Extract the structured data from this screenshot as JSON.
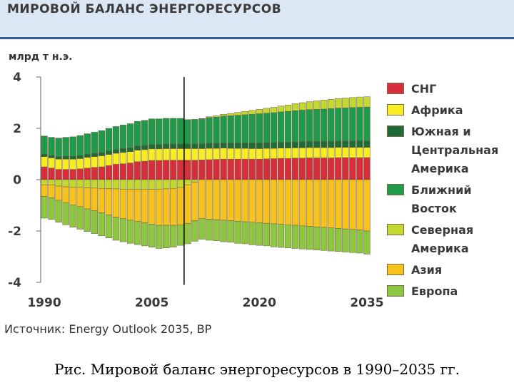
{
  "header": {
    "title": "МИРОВОЙ БАЛАНС ЭНЕРГОРЕСУРСОВ"
  },
  "source": "Источник: Energy Outlook 2035, BP",
  "caption": "Рис. Мировой баланс энергоресурсов в 1990–2035 гг.",
  "colors": {
    "background": "#ffffff",
    "header_band": "#dbe7f3",
    "header_rule": "#2f5fa0"
  },
  "chart_data": {
    "type": "bar",
    "stacked": "diverging",
    "title": "МИРОВОЙ БАЛАНС ЭНЕРГОРЕСУРСОВ",
    "ylabel": "млрд т н.э.",
    "ylim": [
      -4,
      4
    ],
    "y_ticks": [
      4,
      2,
      0,
      -2,
      -4
    ],
    "x_ticks": [
      "1990",
      "2005",
      "2020",
      "2035"
    ],
    "x": [
      1990,
      1991,
      1992,
      1993,
      1994,
      1995,
      1996,
      1997,
      1998,
      1999,
      2000,
      2001,
      2002,
      2003,
      2004,
      2005,
      2006,
      2007,
      2008,
      2009,
      2010,
      2011,
      2012,
      2013,
      2014,
      2015,
      2016,
      2017,
      2018,
      2019,
      2020,
      2021,
      2022,
      2023,
      2024,
      2025,
      2026,
      2027,
      2028,
      2029,
      2030,
      2031,
      2032,
      2033,
      2034,
      2035
    ],
    "divider_x": 2010,
    "legend_position": "right",
    "series": [
      {
        "name": "СНГ",
        "color": "#d62f3b",
        "values": [
          0.5,
          0.45,
          0.4,
          0.4,
          0.4,
          0.42,
          0.45,
          0.48,
          0.5,
          0.55,
          0.6,
          0.62,
          0.65,
          0.7,
          0.72,
          0.75,
          0.75,
          0.76,
          0.76,
          0.76,
          0.76,
          0.76,
          0.77,
          0.78,
          0.79,
          0.8,
          0.8,
          0.8,
          0.8,
          0.8,
          0.8,
          0.81,
          0.82,
          0.83,
          0.83,
          0.84,
          0.84,
          0.85,
          0.85,
          0.85,
          0.85,
          0.86,
          0.86,
          0.86,
          0.86,
          0.86
        ]
      },
      {
        "name": "Африка",
        "color": "#f8ed22",
        "values": [
          0.4,
          0.4,
          0.4,
          0.4,
          0.4,
          0.4,
          0.42,
          0.42,
          0.43,
          0.43,
          0.43,
          0.44,
          0.44,
          0.45,
          0.45,
          0.45,
          0.45,
          0.45,
          0.45,
          0.45,
          0.45,
          0.45,
          0.44,
          0.44,
          0.43,
          0.43,
          0.42,
          0.42,
          0.42,
          0.41,
          0.41,
          0.41,
          0.4,
          0.4,
          0.4,
          0.4,
          0.4,
          0.4,
          0.4,
          0.4,
          0.4,
          0.4,
          0.4,
          0.4,
          0.4,
          0.4
        ]
      },
      {
        "name": "Южная и\nЦентральная\nАмерика",
        "color": "#1f6b35",
        "values": [
          0.1,
          0.1,
          0.1,
          0.11,
          0.11,
          0.12,
          0.12,
          0.13,
          0.13,
          0.14,
          0.14,
          0.15,
          0.15,
          0.16,
          0.16,
          0.17,
          0.17,
          0.18,
          0.18,
          0.18,
          0.18,
          0.19,
          0.19,
          0.2,
          0.2,
          0.2,
          0.21,
          0.21,
          0.21,
          0.22,
          0.22,
          0.22,
          0.22,
          0.23,
          0.23,
          0.23,
          0.24,
          0.24,
          0.24,
          0.24,
          0.25,
          0.25,
          0.25,
          0.25,
          0.25,
          0.25
        ]
      },
      {
        "name": "Ближний\nВосток",
        "color": "#1f9a48",
        "values": [
          0.7,
          0.7,
          0.72,
          0.74,
          0.76,
          0.78,
          0.8,
          0.82,
          0.85,
          0.88,
          0.9,
          0.92,
          0.94,
          0.96,
          0.98,
          1.0,
          1.0,
          1.0,
          1.0,
          1.0,
          0.95,
          0.95,
          0.98,
          1.0,
          1.02,
          1.05,
          1.06,
          1.08,
          1.1,
          1.12,
          1.14,
          1.15,
          1.17,
          1.18,
          1.2,
          1.22,
          1.23,
          1.24,
          1.25,
          1.26,
          1.27,
          1.28,
          1.29,
          1.3,
          1.31,
          1.32
        ]
      },
      {
        "name": "Северная\nАмерика",
        "color": "#c3d92f",
        "values": [
          -0.2,
          -0.2,
          -0.25,
          -0.28,
          -0.3,
          -0.3,
          -0.32,
          -0.33,
          -0.34,
          -0.35,
          -0.36,
          -0.37,
          -0.38,
          -0.38,
          -0.38,
          -0.38,
          -0.38,
          -0.36,
          -0.34,
          -0.3,
          -0.2,
          -0.1,
          0.0,
          0.03,
          0.05,
          0.07,
          0.09,
          0.11,
          0.13,
          0.15,
          0.17,
          0.19,
          0.21,
          0.23,
          0.25,
          0.27,
          0.29,
          0.31,
          0.33,
          0.35,
          0.36,
          0.37,
          0.38,
          0.39,
          0.4,
          0.4
        ]
      },
      {
        "name": "Азия",
        "color": "#f6c21b",
        "values": [
          -0.45,
          -0.5,
          -0.55,
          -0.62,
          -0.68,
          -0.75,
          -0.82,
          -0.88,
          -0.95,
          -1.02,
          -1.1,
          -1.15,
          -1.2,
          -1.25,
          -1.3,
          -1.35,
          -1.4,
          -1.42,
          -1.44,
          -1.46,
          -1.5,
          -1.5,
          -1.52,
          -1.54,
          -1.56,
          -1.58,
          -1.6,
          -1.62,
          -1.64,
          -1.66,
          -1.68,
          -1.7,
          -1.72,
          -1.74,
          -1.76,
          -1.78,
          -1.8,
          -1.82,
          -1.84,
          -1.86,
          -1.88,
          -1.9,
          -1.92,
          -1.94,
          -1.96,
          -2.0
        ]
      },
      {
        "name": "Европа",
        "color": "#8dc63f",
        "values": [
          -0.85,
          -0.85,
          -0.86,
          -0.86,
          -0.87,
          -0.88,
          -0.88,
          -0.89,
          -0.9,
          -0.9,
          -0.9,
          -0.9,
          -0.9,
          -0.9,
          -0.9,
          -0.9,
          -0.9,
          -0.88,
          -0.85,
          -0.8,
          -0.8,
          -0.8,
          -0.8,
          -0.82,
          -0.82,
          -0.84,
          -0.84,
          -0.86,
          -0.86,
          -0.88,
          -0.88,
          -0.88,
          -0.9,
          -0.9,
          -0.9,
          -0.9,
          -0.9,
          -0.9,
          -0.9,
          -0.9,
          -0.9,
          -0.9,
          -0.9,
          -0.9,
          -0.9,
          -0.9
        ]
      }
    ]
  }
}
